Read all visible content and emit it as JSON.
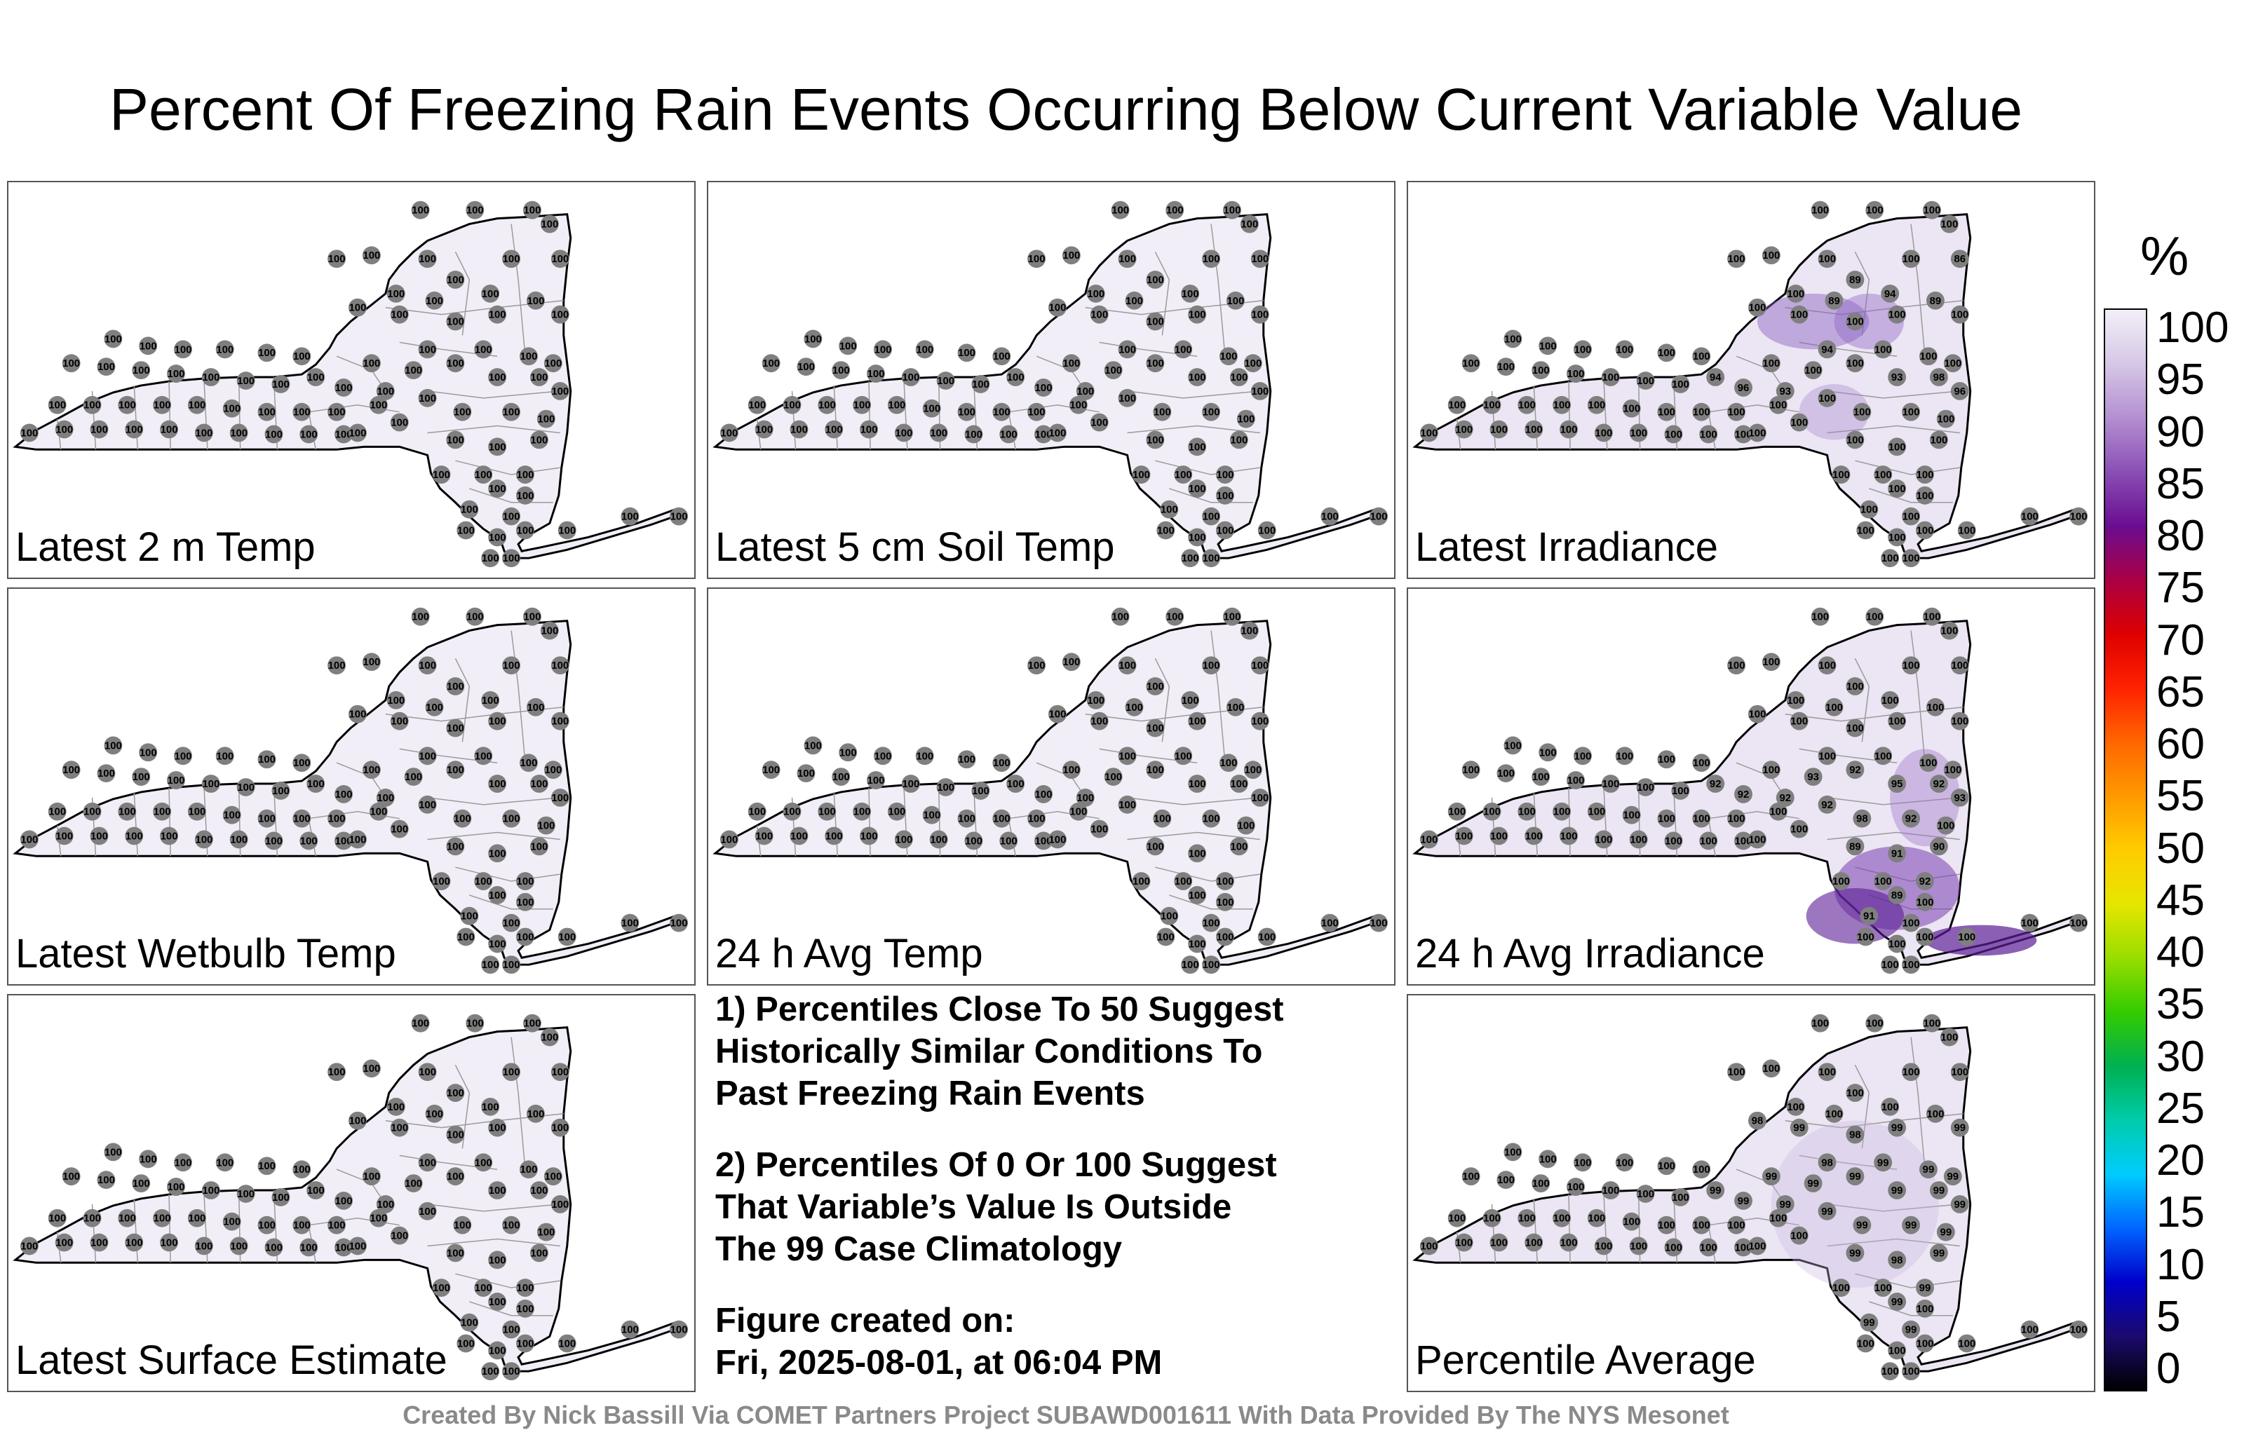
{
  "title": "Percent Of Freezing Rain Events Occurring Below Current Variable Value",
  "panels": [
    {
      "id": "temp2m",
      "label": "Latest 2 m Temp",
      "shade": "#f2eef7",
      "values": "uniform",
      "uniform": "100"
    },
    {
      "id": "soil5cm",
      "label": "Latest 5 cm Soil Temp",
      "shade": "#f2eef7",
      "values": "uniform",
      "uniform": "100"
    },
    {
      "id": "irradiance",
      "label": "Latest Irradiance",
      "shade": "#ece5f3",
      "values": "irradiance",
      "overrides": {
        "7": "89",
        "8": "100",
        "9": "86",
        "10": "100",
        "11": "89",
        "12": "94",
        "13": "89",
        "19": "94",
        "26": "93",
        "27": "98",
        "28": "96",
        "29": "94",
        "30": "96",
        "31": "93",
        "36": "100"
      }
    },
    {
      "id": "wetbulb",
      "label": "Latest Wetbulb Temp",
      "shade": "#f2eef7",
      "values": "uniform",
      "uniform": "100"
    },
    {
      "id": "avgtemp24",
      "label": "24 h Avg Temp",
      "shade": "#f2eef7",
      "values": "uniform",
      "uniform": "100"
    },
    {
      "id": "avgirr24",
      "label": "24 h Avg Irradiance",
      "shade": "#ece5f3",
      "values": "avgirr",
      "overrides": {
        "24": "93",
        "25": "92",
        "26": "95",
        "27": "92",
        "28": "93",
        "29": "92",
        "30": "92",
        "31": "92",
        "32": "92",
        "33": "98",
        "34": "92",
        "36": "89",
        "37": "91",
        "38": "90",
        "39": "92",
        "40": "89",
        "41": "91"
      }
    },
    {
      "id": "surfest",
      "label": "Latest Surface Estimate",
      "shade": "#f2eef7",
      "values": "uniform",
      "uniform": "100"
    },
    {
      "id": "pctavg",
      "label": "Percentile Average",
      "shade": "#ece5f3",
      "values": "avg",
      "overrides": {
        "14": "98",
        "15": "99",
        "16": "98",
        "17": "99",
        "18": "99",
        "19": "98",
        "20": "99",
        "21": "99",
        "22": "99",
        "23": "99",
        "24": "99",
        "25": "99",
        "26": "99",
        "27": "99",
        "28": "99",
        "29": "99",
        "30": "99",
        "31": "99",
        "32": "99",
        "33": "99",
        "34": "99",
        "35": "99",
        "36": "99",
        "37": "98",
        "38": "99",
        "39": "99",
        "40": "99",
        "41": "99",
        "42": "99"
      }
    }
  ],
  "notes": [
    {
      "lines": [
        "1) Percentiles Close To 50 Suggest",
        "Historically Similar Conditions To",
        "Past Freezing Rain Events"
      ]
    },
    {
      "lines": [
        "2) Percentiles Of 0 Or 100 Suggest",
        "That Variable’s Value Is Outside",
        "The 99 Case Climatology"
      ]
    },
    {
      "lines": [
        "Figure created on:",
        "Fri, 2025-08-01, at 06:04 PM"
      ]
    }
  ],
  "colorbar": {
    "unit": "%",
    "ticks": [
      "100",
      "95",
      "90",
      "85",
      "80",
      "75",
      "70",
      "65",
      "60",
      "55",
      "50",
      "45",
      "40",
      "35",
      "30",
      "25",
      "20",
      "15",
      "10",
      "5",
      "0"
    ],
    "colors": [
      "#000000",
      "#1b0a6e",
      "#0000cc",
      "#0066ff",
      "#00ccff",
      "#00ccaa",
      "#00b050",
      "#33cc00",
      "#99dd00",
      "#e6e600",
      "#ffcc00",
      "#ff9900",
      "#ff6600",
      "#ff2200",
      "#dd0000",
      "#aa0044",
      "#6a0d91",
      "#8a4fb5",
      "#b48fd1",
      "#d6c7e6",
      "#f3eff8"
    ]
  },
  "credits": "Created By Nick Bassill Via COMET Partners Project SUBAWD001611 With Data Provided By The NYS Mesonet"
}
